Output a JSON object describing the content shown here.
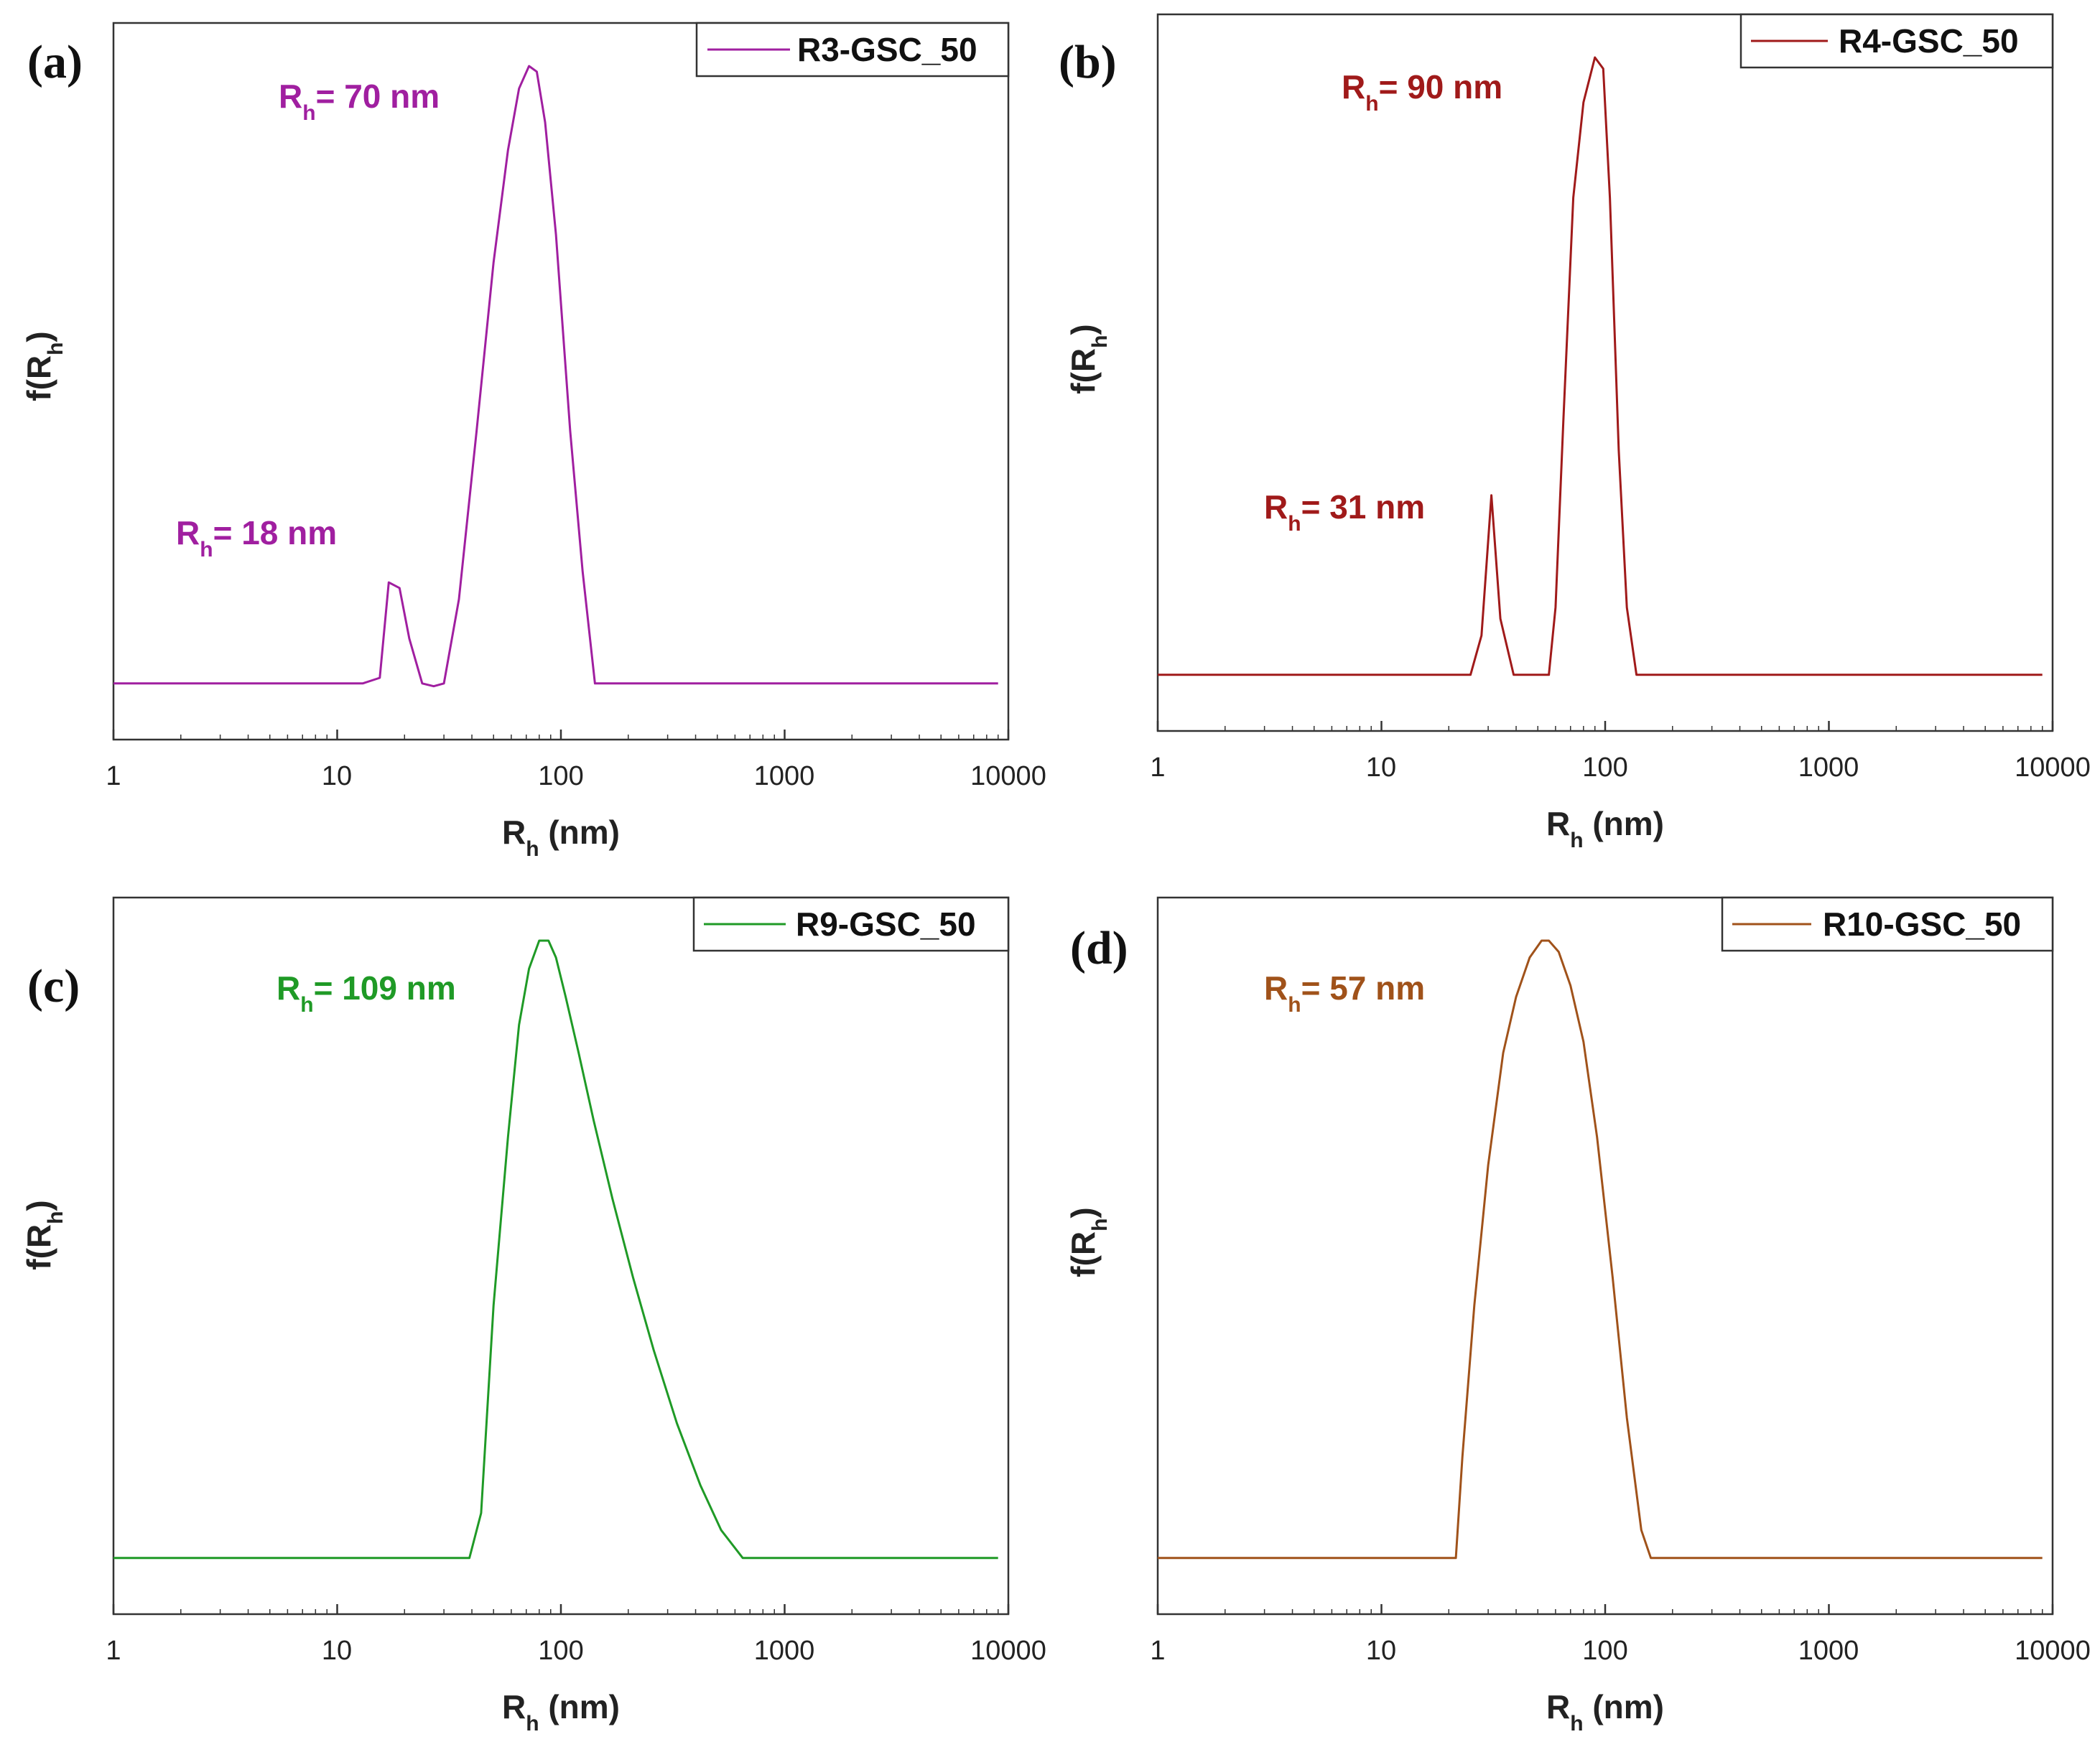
{
  "chart_data": [
    {
      "type": "line",
      "panel_label": "(a)",
      "legend": "R3-GSC_50",
      "color": "#a01fa0",
      "xscale": "log",
      "xlim": [
        1,
        10000
      ],
      "ylim": [
        0,
        1.2
      ],
      "x_ticks": [
        "1",
        "10",
        "100",
        "1000",
        "10000"
      ],
      "xlabel": {
        "main": "R",
        "sub": "h",
        "rest": " (nm)"
      },
      "ylabel": {
        "main": "f(R",
        "sub": "h",
        "rest": ")"
      },
      "series": [
        {
          "name": "R3-GSC_50",
          "x": [
            1,
            13,
            15.5,
            17,
            19,
            21,
            24,
            27,
            30,
            35,
            42,
            50,
            58,
            65,
            72,
            78,
            85,
            95,
            110,
            125,
            142,
            160,
            9000
          ],
          "y": [
            0.1,
            0.1,
            0.11,
            0.28,
            0.27,
            0.18,
            0.1,
            0.095,
            0.1,
            0.25,
            0.55,
            0.85,
            1.05,
            1.16,
            1.2,
            1.19,
            1.1,
            0.9,
            0.55,
            0.3,
            0.1,
            0.1,
            0.1
          ]
        }
      ],
      "annotations": [
        {
          "main": "R",
          "sub": "h",
          "rest": "= 70 nm"
        },
        {
          "main": "R",
          "sub": "h",
          "rest": "= 18 nm"
        }
      ]
    },
    {
      "type": "line",
      "panel_label": "(b)",
      "legend": "R4-GSC_50",
      "color": "#a01a1a",
      "xscale": "log",
      "xlim": [
        1,
        10000
      ],
      "ylim": [
        0,
        1.2
      ],
      "x_ticks": [
        "1",
        "10",
        "100",
        "1000",
        "10000"
      ],
      "xlabel": {
        "main": "R",
        "sub": "h",
        "rest": " (nm)"
      },
      "ylabel": {
        "main": "f(R",
        "sub": "h",
        "rest": ")"
      },
      "series": [
        {
          "name": "R4-GSC_50",
          "x": [
            1,
            25,
            28,
            31,
            34,
            39,
            56,
            60,
            65,
            72,
            80,
            90,
            98,
            105,
            115,
            125,
            138,
            9000
          ],
          "y": [
            0.1,
            0.1,
            0.17,
            0.42,
            0.2,
            0.1,
            0.1,
            0.22,
            0.55,
            0.95,
            1.12,
            1.2,
            1.18,
            0.95,
            0.5,
            0.22,
            0.1,
            0.1
          ]
        }
      ],
      "annotations": [
        {
          "main": "R",
          "sub": "h",
          "rest": "= 90 nm"
        },
        {
          "main": "R",
          "sub": "h",
          "rest": "= 31 nm"
        }
      ]
    },
    {
      "type": "line",
      "panel_label": "(c)",
      "legend": "R9-GSC_50",
      "color": "#1f9a26",
      "xscale": "log",
      "xlim": [
        1,
        10000
      ],
      "ylim": [
        0,
        1.2
      ],
      "x_ticks": [
        "1",
        "10",
        "100",
        "1000",
        "10000"
      ],
      "xlabel": {
        "main": "R",
        "sub": "h",
        "rest": " (nm)"
      },
      "ylabel": {
        "main": "f(R",
        "sub": "h",
        "rest": ")"
      },
      "series": [
        {
          "name": "R9-GSC_50",
          "x": [
            1,
            39,
            44,
            50,
            58,
            65,
            72,
            80,
            88,
            95,
            105,
            120,
            140,
            170,
            210,
            260,
            330,
            420,
            520,
            650,
            9000
          ],
          "y": [
            0.1,
            0.1,
            0.18,
            0.55,
            0.85,
            1.05,
            1.15,
            1.2,
            1.2,
            1.17,
            1.1,
            1.0,
            0.88,
            0.74,
            0.6,
            0.47,
            0.34,
            0.23,
            0.15,
            0.1,
            0.1
          ]
        }
      ],
      "annotations": [
        {
          "main": "R",
          "sub": "h",
          "rest": "= 109 nm"
        }
      ]
    },
    {
      "type": "line",
      "panel_label": "(d)",
      "legend": "R10-GSC_50",
      "color": "#a0521a",
      "xscale": "log",
      "xlim": [
        1,
        10000
      ],
      "ylim": [
        0,
        1.2
      ],
      "x_ticks": [
        "1",
        "10",
        "100",
        "1000",
        "10000"
      ],
      "xlabel": {
        "main": "R",
        "sub": "h",
        "rest": " (nm)"
      },
      "ylabel": {
        "main": "f(R",
        "sub": "h",
        "rest": ")"
      },
      "series": [
        {
          "name": "R10-GSC_50",
          "x": [
            1,
            21.5,
            23,
            26,
            30,
            35,
            40,
            46,
            52,
            56,
            62,
            70,
            80,
            92,
            108,
            125,
            145,
            160,
            9000
          ],
          "y": [
            0.1,
            0.1,
            0.28,
            0.55,
            0.8,
            1.0,
            1.1,
            1.17,
            1.2,
            1.2,
            1.18,
            1.12,
            1.02,
            0.85,
            0.6,
            0.35,
            0.15,
            0.1,
            0.1
          ]
        }
      ],
      "annotations": [
        {
          "main": "R",
          "sub": "h",
          "rest": "= 57 nm"
        }
      ]
    }
  ]
}
